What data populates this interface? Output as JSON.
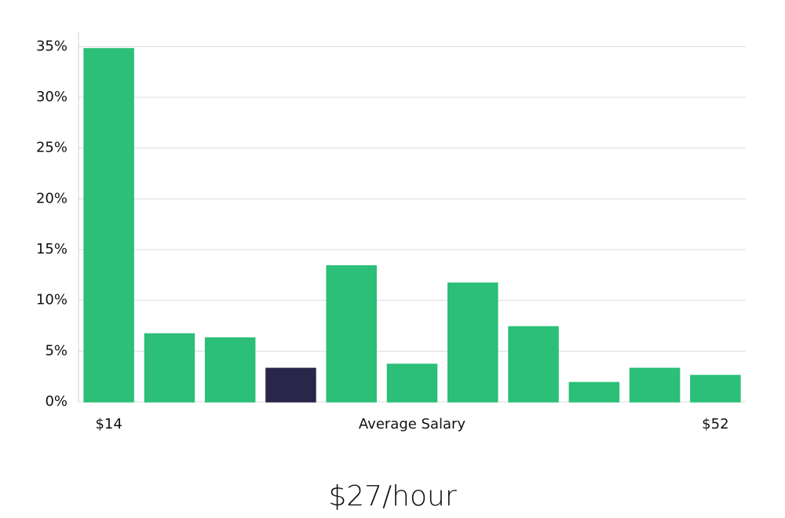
{
  "chart_data": {
    "type": "bar",
    "categories": [
      "$14",
      null,
      null,
      null,
      null,
      "Average Salary",
      null,
      null,
      null,
      null,
      "$52"
    ],
    "values": [
      34.8,
      6.7,
      6.3,
      3.3,
      13.4,
      3.7,
      11.7,
      7.4,
      1.9,
      3.3,
      2.6
    ],
    "colors": [
      "#2bbf77",
      "#2bbf77",
      "#2bbf77",
      "#29264a",
      "#2bbf77",
      "#2bbf77",
      "#2bbf77",
      "#2bbf77",
      "#2bbf77",
      "#2bbf77",
      "#2bbf77"
    ],
    "ylim": [
      0,
      36.5
    ],
    "yticks": [
      {
        "value": 0,
        "label": "0%"
      },
      {
        "value": 5,
        "label": "5%"
      },
      {
        "value": 10,
        "label": "10%"
      },
      {
        "value": 15,
        "label": "15%"
      },
      {
        "value": 20,
        "label": "20%"
      },
      {
        "value": 25,
        "label": "25%"
      },
      {
        "value": 30,
        "label": "30%"
      },
      {
        "value": 35,
        "label": "35%"
      }
    ],
    "grid": true,
    "annotation": "$27/hour"
  }
}
